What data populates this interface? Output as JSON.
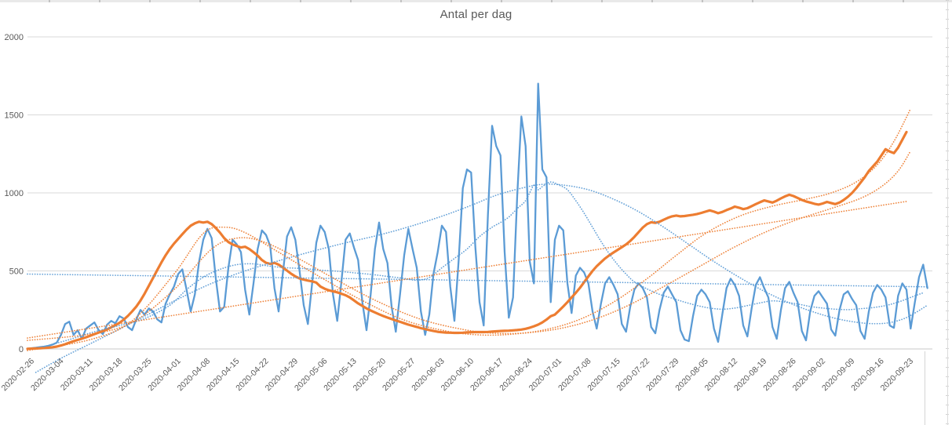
{
  "chart_data": {
    "type": "line",
    "title": "Antal per dag",
    "ylabel": "",
    "xlabel": "",
    "ylim": [
      0,
      2000
    ],
    "yticks": [
      0,
      500,
      1000,
      1500,
      2000
    ],
    "grid": true,
    "legend": "none",
    "start_date": "2020-02-26",
    "x_tick_interval_days": 7,
    "x_tick_labels": [
      "2020-02-26",
      "2020-03-04",
      "2020-03-11",
      "2020-03-18",
      "2020-03-25",
      "2020-04-01",
      "2020-04-08",
      "2020-04-15",
      "2020-04-22",
      "2020-04-29",
      "2020-05-06",
      "2020-05-13",
      "2020-05-20",
      "2020-05-27",
      "2020-06-03",
      "2020-06-10",
      "2020-06-17",
      "2020-06-24",
      "2020-07-01",
      "2020-07-08",
      "2020-07-15",
      "2020-07-22",
      "2020-07-29",
      "2020-08-05",
      "2020-08-12",
      "2020-08-19",
      "2020-08-26",
      "2020-09-02",
      "2020-09-09",
      "2020-09-16",
      "2020-09-23"
    ],
    "colors": {
      "blue": "#5B9BD5",
      "orange": "#ED7D31",
      "grid": "#D9D9D9",
      "axis_line": "#C9C9C9",
      "axis_text": "#595959",
      "title_text": "#595959"
    },
    "series": [
      {
        "name": "daily-count-blue",
        "color": "blue",
        "style": "solid",
        "smooth": false,
        "values": [
          2,
          5,
          8,
          12,
          15,
          20,
          28,
          40,
          90,
          160,
          175,
          90,
          120,
          65,
          130,
          150,
          170,
          120,
          95,
          155,
          180,
          165,
          210,
          195,
          140,
          120,
          190,
          250,
          220,
          260,
          240,
          190,
          170,
          290,
          350,
          400,
          480,
          510,
          380,
          240,
          350,
          560,
          700,
          770,
          710,
          450,
          240,
          270,
          520,
          700,
          670,
          620,
          380,
          220,
          420,
          640,
          760,
          730,
          660,
          390,
          240,
          480,
          720,
          780,
          700,
          500,
          280,
          160,
          420,
          680,
          790,
          750,
          640,
          350,
          180,
          430,
          700,
          740,
          650,
          570,
          300,
          120,
          350,
          640,
          810,
          640,
          550,
          270,
          110,
          350,
          600,
          770,
          640,
          520,
          240,
          90,
          220,
          480,
          620,
          790,
          750,
          400,
          180,
          560,
          1030,
          1150,
          1130,
          650,
          300,
          150,
          860,
          1430,
          1300,
          1240,
          620,
          200,
          330,
          980,
          1490,
          1300,
          560,
          420,
          1700,
          1150,
          1100,
          300,
          700,
          790,
          760,
          420,
          230,
          470,
          520,
          490,
          420,
          240,
          130,
          290,
          420,
          460,
          410,
          350,
          160,
          110,
          270,
          380,
          420,
          390,
          330,
          140,
          100,
          250,
          360,
          400,
          350,
          300,
          120,
          60,
          50,
          210,
          340,
          380,
          350,
          300,
          130,
          45,
          220,
          390,
          450,
          410,
          340,
          150,
          80,
          260,
          410,
          460,
          390,
          330,
          140,
          65,
          250,
          390,
          430,
          360,
          300,
          115,
          55,
          240,
          340,
          370,
          330,
          290,
          125,
          85,
          250,
          350,
          370,
          320,
          280,
          115,
          65,
          240,
          360,
          410,
          380,
          330,
          150,
          135,
          340,
          420,
          380,
          130,
          300,
          460,
          540,
          390
        ]
      },
      {
        "name": "smoothed-average-orange",
        "color": "orange",
        "style": "solid",
        "smooth": false,
        "values": [
          1,
          2,
          3,
          4,
          6,
          8,
          11,
          15,
          22,
          30,
          40,
          50,
          58,
          66,
          75,
          85,
          95,
          105,
          115,
          125,
          138,
          152,
          168,
          188,
          212,
          240,
          272,
          310,
          355,
          405,
          455,
          505,
          555,
          600,
          640,
          675,
          705,
          735,
          765,
          790,
          805,
          815,
          810,
          815,
          800,
          775,
          745,
          710,
          685,
          670,
          660,
          650,
          655,
          640,
          620,
          598,
          570,
          552,
          545,
          552,
          540,
          522,
          502,
          482,
          465,
          452,
          444,
          438,
          433,
          425,
          400,
          386,
          376,
          369,
          363,
          354,
          344,
          330,
          311,
          292,
          276,
          260,
          246,
          234,
          222,
          211,
          201,
          192,
          183,
          174,
          165,
          156,
          148,
          141,
          133,
          127,
          121,
          115,
          110,
          107,
          105,
          104,
          103,
          103,
          104,
          106,
          107,
          108,
          108,
          108,
          109,
          111,
          113,
          115,
          116,
          117,
          119,
          121,
          124,
          129,
          136,
          145,
          156,
          170,
          188,
          210,
          220,
          245,
          272,
          300,
          330,
          360,
          392,
          428,
          465,
          500,
          530,
          556,
          580,
          600,
          618,
          635,
          652,
          670,
          692,
          718,
          748,
          778,
          800,
          812,
          808,
          815,
          828,
          840,
          850,
          855,
          850,
          852,
          856,
          860,
          865,
          872,
          880,
          888,
          880,
          870,
          878,
          890,
          900,
          912,
          905,
          896,
          902,
          915,
          928,
          940,
          952,
          945,
          938,
          950,
          965,
          978,
          988,
          980,
          968,
          955,
          945,
          938,
          930,
          925,
          932,
          942,
          935,
          928,
          938,
          955,
          975,
          1000,
          1030,
          1065,
          1100,
          1140,
          1170,
          1200,
          1240,
          1280,
          1265,
          1255,
          1290,
          1340,
          1390
        ]
      },
      {
        "name": "trend-blue-linear",
        "color": "blue",
        "style": "dotted",
        "smooth": true,
        "points": [
          [
            0,
            480
          ],
          [
            215,
            398
          ]
        ]
      },
      {
        "name": "trend-blue-polynomial",
        "color": "blue",
        "style": "dotted",
        "smooth": true,
        "points": [
          [
            2,
            -150
          ],
          [
            8,
            -60
          ],
          [
            14,
            20
          ],
          [
            20,
            100
          ],
          [
            28,
            210
          ],
          [
            36,
            320
          ],
          [
            44,
            420
          ],
          [
            52,
            500
          ],
          [
            60,
            565
          ],
          [
            68,
            625
          ],
          [
            76,
            680
          ],
          [
            84,
            730
          ],
          [
            92,
            790
          ],
          [
            100,
            860
          ],
          [
            106,
            920
          ],
          [
            112,
            985
          ],
          [
            118,
            1030
          ],
          [
            123,
            1055
          ],
          [
            128,
            1050
          ],
          [
            134,
            1020
          ],
          [
            140,
            960
          ],
          [
            146,
            880
          ],
          [
            152,
            780
          ],
          [
            158,
            670
          ],
          [
            164,
            560
          ],
          [
            170,
            460
          ],
          [
            176,
            370
          ],
          [
            182,
            295
          ],
          [
            188,
            235
          ],
          [
            194,
            190
          ],
          [
            200,
            165
          ],
          [
            205,
            165
          ],
          [
            209,
            190
          ],
          [
            212,
            230
          ],
          [
            215,
            280
          ]
        ]
      },
      {
        "name": "trend-blue-moving-average",
        "color": "blue",
        "style": "dotted",
        "smooth": true,
        "points": [
          [
            4,
            15
          ],
          [
            10,
            60
          ],
          [
            16,
            110
          ],
          [
            22,
            150
          ],
          [
            28,
            195
          ],
          [
            34,
            280
          ],
          [
            38,
            380
          ],
          [
            42,
            460
          ],
          [
            46,
            510
          ],
          [
            50,
            540
          ],
          [
            54,
            545
          ],
          [
            58,
            530
          ],
          [
            62,
            520
          ],
          [
            66,
            515
          ],
          [
            70,
            505
          ],
          [
            74,
            498
          ],
          [
            78,
            488
          ],
          [
            82,
            478
          ],
          [
            86,
            465
          ],
          [
            90,
            452
          ],
          [
            93,
            440
          ],
          [
            96,
            458
          ],
          [
            99,
            520
          ],
          [
            102,
            580
          ],
          [
            105,
            640
          ],
          [
            108,
            720
          ],
          [
            111,
            780
          ],
          [
            113,
            810
          ],
          [
            115,
            845
          ],
          [
            117,
            900
          ],
          [
            119,
            950
          ],
          [
            121,
            1050
          ],
          [
            122,
            1020
          ],
          [
            123,
            1040
          ],
          [
            125,
            1070
          ],
          [
            127,
            1050
          ],
          [
            129,
            1020
          ],
          [
            131,
            950
          ],
          [
            133,
            870
          ],
          [
            135,
            780
          ],
          [
            137,
            690
          ],
          [
            139,
            610
          ],
          [
            141,
            540
          ],
          [
            143,
            480
          ],
          [
            145,
            430
          ],
          [
            148,
            385
          ],
          [
            151,
            350
          ],
          [
            154,
            325
          ],
          [
            157,
            300
          ],
          [
            160,
            278
          ],
          [
            163,
            262
          ],
          [
            166,
            255
          ],
          [
            169,
            262
          ],
          [
            172,
            278
          ],
          [
            175,
            295
          ],
          [
            178,
            308
          ],
          [
            181,
            300
          ],
          [
            184,
            288
          ],
          [
            187,
            272
          ],
          [
            190,
            262
          ],
          [
            193,
            255
          ],
          [
            196,
            252
          ],
          [
            199,
            258
          ],
          [
            202,
            265
          ],
          [
            205,
            278
          ],
          [
            208,
            300
          ],
          [
            211,
            330
          ],
          [
            214,
            360
          ]
        ]
      },
      {
        "name": "trend-orange-linear",
        "color": "orange",
        "style": "dotted",
        "smooth": true,
        "points": [
          [
            0,
            70
          ],
          [
            210,
            945
          ]
        ]
      },
      {
        "name": "trend-orange-polynomial-1",
        "color": "orange",
        "style": "dotted",
        "smooth": true,
        "points": [
          [
            0,
            -10
          ],
          [
            15,
            60
          ],
          [
            25,
            180
          ],
          [
            35,
            480
          ],
          [
            42,
            740
          ],
          [
            47,
            780
          ],
          [
            52,
            745
          ],
          [
            60,
            620
          ],
          [
            70,
            460
          ],
          [
            80,
            310
          ],
          [
            90,
            185
          ],
          [
            100,
            115
          ],
          [
            108,
            90
          ],
          [
            116,
            95
          ],
          [
            124,
            125
          ],
          [
            132,
            190
          ],
          [
            140,
            300
          ],
          [
            148,
            450
          ],
          [
            155,
            600
          ],
          [
            162,
            740
          ],
          [
            170,
            850
          ],
          [
            178,
            915
          ],
          [
            186,
            960
          ],
          [
            192,
            1000
          ],
          [
            198,
            1070
          ],
          [
            203,
            1180
          ],
          [
            207,
            1330
          ],
          [
            211,
            1540
          ]
        ]
      },
      {
        "name": "trend-orange-polynomial-2",
        "color": "orange",
        "style": "dotted",
        "smooth": true,
        "points": [
          [
            0,
            55
          ],
          [
            15,
            95
          ],
          [
            25,
            170
          ],
          [
            35,
            380
          ],
          [
            44,
            640
          ],
          [
            50,
            710
          ],
          [
            56,
            690
          ],
          [
            64,
            590
          ],
          [
            74,
            440
          ],
          [
            84,
            300
          ],
          [
            94,
            190
          ],
          [
            104,
            125
          ],
          [
            112,
            100
          ],
          [
            120,
            105
          ],
          [
            128,
            135
          ],
          [
            136,
            195
          ],
          [
            144,
            285
          ],
          [
            152,
            400
          ],
          [
            160,
            520
          ],
          [
            168,
            640
          ],
          [
            176,
            745
          ],
          [
            184,
            830
          ],
          [
            192,
            900
          ],
          [
            199,
            965
          ],
          [
            204,
            1040
          ],
          [
            208,
            1140
          ],
          [
            211,
            1270
          ]
        ]
      }
    ]
  }
}
